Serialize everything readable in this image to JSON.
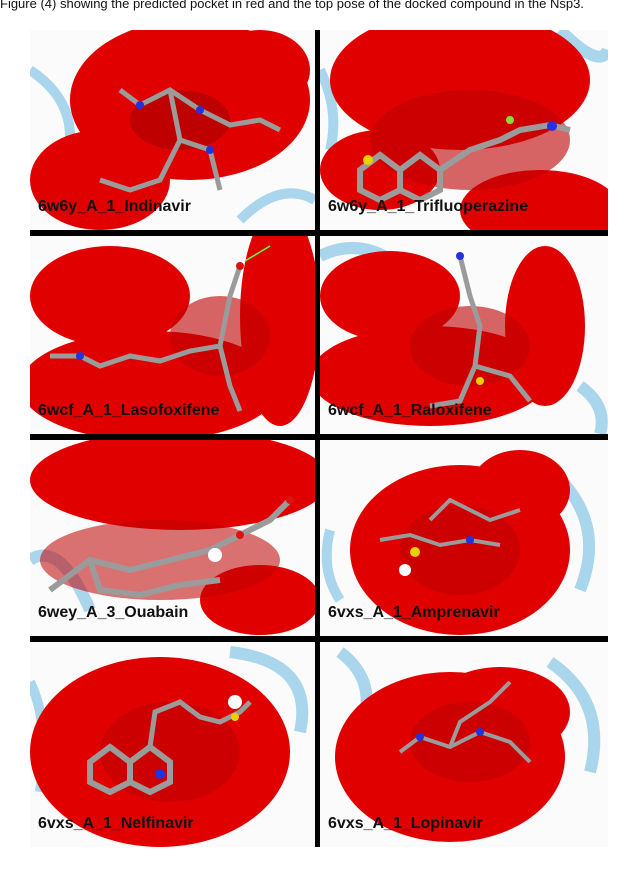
{
  "caption": "Figure (4) showing the predicted pocket in red and the top pose of the docked compound in the Nsp3.",
  "colors": {
    "pocket": "#e00000",
    "pocket_dark": "#9e0000",
    "ribbon": "#a9d6ec",
    "ligand": "#9b9b9b",
    "nitrogen": "#2233dd",
    "sulfur": "#e6d200",
    "oxygen": "#dd1111",
    "fluorine": "#88dd33",
    "divider": "#000000"
  },
  "panels": [
    {
      "label": "6w6y_A_1_Indinavir"
    },
    {
      "label": "6w6y_A_1_Trifluoperazine"
    },
    {
      "label": "6wcf_A_1_Lasofoxifene"
    },
    {
      "label": "6wcf_A_1_Raloxifene"
    },
    {
      "label": "6wey_A_3_Ouabain"
    },
    {
      "label": "6vxs_A_1_Amprenavir"
    },
    {
      "label": "6vxs_A_1_Nelfinavir"
    },
    {
      "label": "6vxs_A_1_Lopinavir"
    }
  ]
}
